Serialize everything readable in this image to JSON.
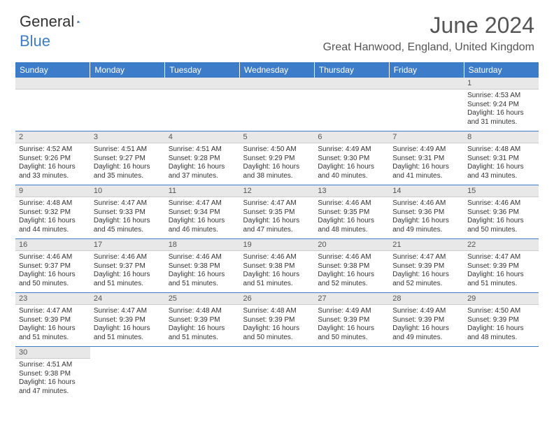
{
  "logo": {
    "text_a": "General",
    "text_b": "Blue"
  },
  "title": "June 2024",
  "location": "Great Hanwood, England, United Kingdom",
  "colors": {
    "header_bg": "#3d7cc9",
    "header_text": "#ffffff",
    "daynum_bg": "#e8e8e8",
    "body_text": "#333333",
    "title_text": "#555555",
    "border": "#3d7cc9"
  },
  "day_headers": [
    "Sunday",
    "Monday",
    "Tuesday",
    "Wednesday",
    "Thursday",
    "Friday",
    "Saturday"
  ],
  "weeks": [
    [
      null,
      null,
      null,
      null,
      null,
      null,
      {
        "n": "1",
        "sr": "4:53 AM",
        "ss": "9:24 PM",
        "dh": "16",
        "dm": "31"
      }
    ],
    [
      {
        "n": "2",
        "sr": "4:52 AM",
        "ss": "9:26 PM",
        "dh": "16",
        "dm": "33"
      },
      {
        "n": "3",
        "sr": "4:51 AM",
        "ss": "9:27 PM",
        "dh": "16",
        "dm": "35"
      },
      {
        "n": "4",
        "sr": "4:51 AM",
        "ss": "9:28 PM",
        "dh": "16",
        "dm": "37"
      },
      {
        "n": "5",
        "sr": "4:50 AM",
        "ss": "9:29 PM",
        "dh": "16",
        "dm": "38"
      },
      {
        "n": "6",
        "sr": "4:49 AM",
        "ss": "9:30 PM",
        "dh": "16",
        "dm": "40"
      },
      {
        "n": "7",
        "sr": "4:49 AM",
        "ss": "9:31 PM",
        "dh": "16",
        "dm": "41"
      },
      {
        "n": "8",
        "sr": "4:48 AM",
        "ss": "9:31 PM",
        "dh": "16",
        "dm": "43"
      }
    ],
    [
      {
        "n": "9",
        "sr": "4:48 AM",
        "ss": "9:32 PM",
        "dh": "16",
        "dm": "44"
      },
      {
        "n": "10",
        "sr": "4:47 AM",
        "ss": "9:33 PM",
        "dh": "16",
        "dm": "45"
      },
      {
        "n": "11",
        "sr": "4:47 AM",
        "ss": "9:34 PM",
        "dh": "16",
        "dm": "46"
      },
      {
        "n": "12",
        "sr": "4:47 AM",
        "ss": "9:35 PM",
        "dh": "16",
        "dm": "47"
      },
      {
        "n": "13",
        "sr": "4:46 AM",
        "ss": "9:35 PM",
        "dh": "16",
        "dm": "48"
      },
      {
        "n": "14",
        "sr": "4:46 AM",
        "ss": "9:36 PM",
        "dh": "16",
        "dm": "49"
      },
      {
        "n": "15",
        "sr": "4:46 AM",
        "ss": "9:36 PM",
        "dh": "16",
        "dm": "50"
      }
    ],
    [
      {
        "n": "16",
        "sr": "4:46 AM",
        "ss": "9:37 PM",
        "dh": "16",
        "dm": "50"
      },
      {
        "n": "17",
        "sr": "4:46 AM",
        "ss": "9:37 PM",
        "dh": "16",
        "dm": "51"
      },
      {
        "n": "18",
        "sr": "4:46 AM",
        "ss": "9:38 PM",
        "dh": "16",
        "dm": "51"
      },
      {
        "n": "19",
        "sr": "4:46 AM",
        "ss": "9:38 PM",
        "dh": "16",
        "dm": "51"
      },
      {
        "n": "20",
        "sr": "4:46 AM",
        "ss": "9:38 PM",
        "dh": "16",
        "dm": "52"
      },
      {
        "n": "21",
        "sr": "4:47 AM",
        "ss": "9:39 PM",
        "dh": "16",
        "dm": "52"
      },
      {
        "n": "22",
        "sr": "4:47 AM",
        "ss": "9:39 PM",
        "dh": "16",
        "dm": "51"
      }
    ],
    [
      {
        "n": "23",
        "sr": "4:47 AM",
        "ss": "9:39 PM",
        "dh": "16",
        "dm": "51"
      },
      {
        "n": "24",
        "sr": "4:47 AM",
        "ss": "9:39 PM",
        "dh": "16",
        "dm": "51"
      },
      {
        "n": "25",
        "sr": "4:48 AM",
        "ss": "9:39 PM",
        "dh": "16",
        "dm": "51"
      },
      {
        "n": "26",
        "sr": "4:48 AM",
        "ss": "9:39 PM",
        "dh": "16",
        "dm": "50"
      },
      {
        "n": "27",
        "sr": "4:49 AM",
        "ss": "9:39 PM",
        "dh": "16",
        "dm": "50"
      },
      {
        "n": "28",
        "sr": "4:49 AM",
        "ss": "9:39 PM",
        "dh": "16",
        "dm": "49"
      },
      {
        "n": "29",
        "sr": "4:50 AM",
        "ss": "9:39 PM",
        "dh": "16",
        "dm": "48"
      }
    ],
    [
      {
        "n": "30",
        "sr": "4:51 AM",
        "ss": "9:38 PM",
        "dh": "16",
        "dm": "47"
      },
      null,
      null,
      null,
      null,
      null,
      null
    ]
  ],
  "labels": {
    "sunrise": "Sunrise:",
    "sunset": "Sunset:",
    "daylight_a": "Daylight:",
    "hours": "hours",
    "and": "and",
    "minutes": "minutes."
  }
}
